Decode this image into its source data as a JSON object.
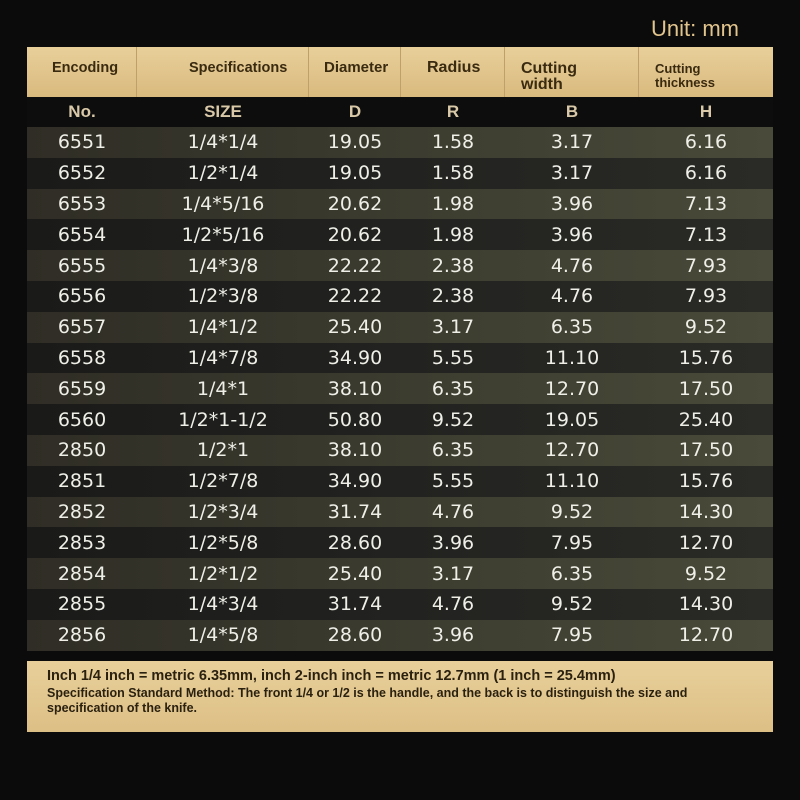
{
  "unit_label": "Unit: mm",
  "headers": [
    "Encoding",
    "Specifications",
    "Diameter",
    "Radius",
    "Cutting width",
    "Cutting thickness"
  ],
  "header_lines": {
    "encoding": "Encoding",
    "specifications": "Specifications",
    "diameter": "Diameter",
    "radius": "Radius",
    "cutting_width_1": "Cutting",
    "cutting_width_2": "width",
    "cutting_thickness_1": "Cutting",
    "cutting_thickness_2": "thickness"
  },
  "subheaders": [
    "No.",
    "SIZE",
    "D",
    "R",
    "B",
    "H"
  ],
  "rows": [
    [
      "6551",
      "1/4*1/4",
      "19.05",
      "1.58",
      "3.17",
      "6.16"
    ],
    [
      "6552",
      "1/2*1/4",
      "19.05",
      "1.58",
      "3.17",
      "6.16"
    ],
    [
      "6553",
      "1/4*5/16",
      "20.62",
      "1.98",
      "3.96",
      "7.13"
    ],
    [
      "6554",
      "1/2*5/16",
      "20.62",
      "1.98",
      "3.96",
      "7.13"
    ],
    [
      "6555",
      "1/4*3/8",
      "22.22",
      "2.38",
      "4.76",
      "7.93"
    ],
    [
      "6556",
      "1/2*3/8",
      "22.22",
      "2.38",
      "4.76",
      "7.93"
    ],
    [
      "6557",
      "1/4*1/2",
      "25.40",
      "3.17",
      "6.35",
      "9.52"
    ],
    [
      "6558",
      "1/4*7/8",
      "34.90",
      "5.55",
      "11.10",
      "15.76"
    ],
    [
      "6559",
      "1/4*1",
      "38.10",
      "6.35",
      "12.70",
      "17.50"
    ],
    [
      "6560",
      "1/2*1-1/2",
      "50.80",
      "9.52",
      "19.05",
      "25.40"
    ],
    [
      "2850",
      "1/2*1",
      "38.10",
      "6.35",
      "12.70",
      "17.50"
    ],
    [
      "2851",
      "1/2*7/8",
      "34.90",
      "5.55",
      "11.10",
      "15.76"
    ],
    [
      "2852",
      "1/2*3/4",
      "31.74",
      "4.76",
      "9.52",
      "14.30"
    ],
    [
      "2853",
      "1/2*5/8",
      "28.60",
      "3.96",
      "7.95",
      "12.70"
    ],
    [
      "2854",
      "1/2*1/2",
      "25.40",
      "3.17",
      "6.35",
      "9.52"
    ],
    [
      "2855",
      "1/4*3/4",
      "31.74",
      "4.76",
      "9.52",
      "14.30"
    ],
    [
      "2856",
      "1/4*5/8",
      "28.60",
      "3.96",
      "7.95",
      "12.70"
    ]
  ],
  "note": {
    "line1": "Inch 1/4 inch = metric 6.35mm, inch 2-inch inch = metric 12.7mm (1 inch = 25.4mm)",
    "line2": "Specification Standard Method: The front 1/4 or 1/2 is the handle, and the back is to distinguish the size and specification of the knife."
  },
  "colors": {
    "header_gold": "#e3c78f",
    "unit_text": "#e2c48d",
    "background": "#0b0b0b"
  }
}
